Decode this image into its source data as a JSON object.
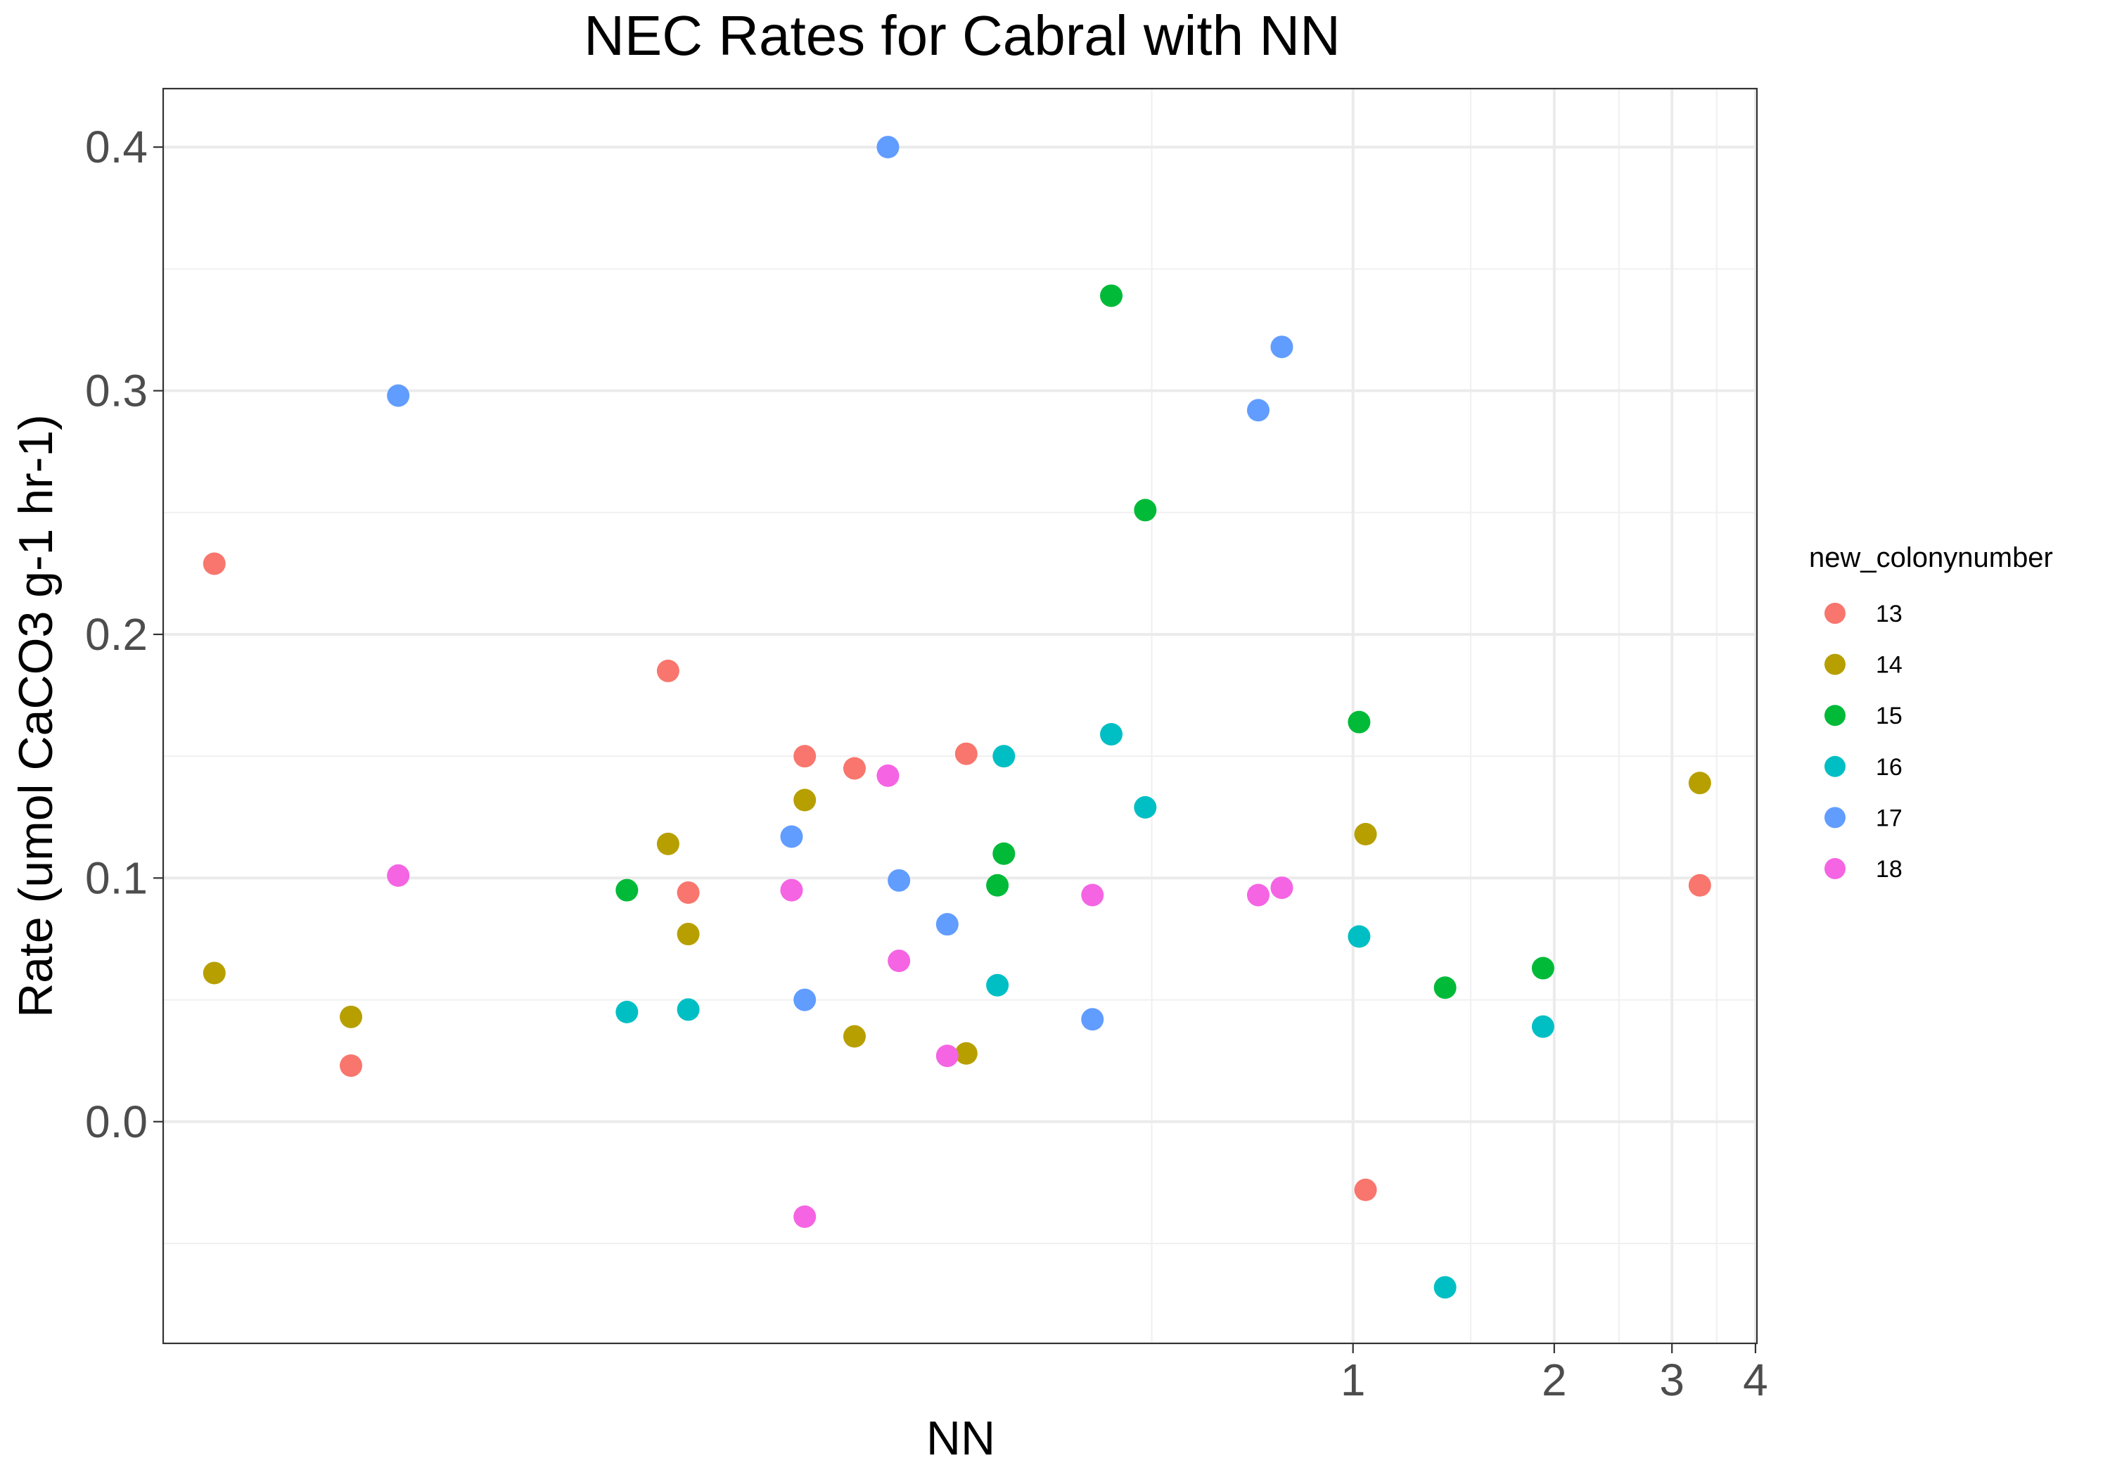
{
  "chart_data": {
    "type": "scatter",
    "title": "NEC Rates for Cabral with NN",
    "xlabel": "NN",
    "ylabel": "Rate (umol CaCO3 g-1 hr-1)",
    "x_scale": "log10",
    "xlim": [
      0.0166,
      4.02
    ],
    "ylim": [
      -0.091,
      0.424
    ],
    "x_ticks": [
      1,
      2,
      3,
      4
    ],
    "x_tick_labels": [
      "1",
      "2",
      "3",
      "4"
    ],
    "x_minor_gridlines": [
      0.5,
      1.5,
      2.5,
      3.5
    ],
    "y_ticks": [
      0.0,
      0.1,
      0.2,
      0.3,
      0.4
    ],
    "y_tick_labels": [
      "0.0",
      "0.1",
      "0.2",
      "0.3",
      "0.4"
    ],
    "y_minor_gridlines": [
      -0.05,
      0.05,
      0.15,
      0.25,
      0.35
    ],
    "grid": true,
    "legend": {
      "title": "new_colonynumber",
      "position": "right"
    },
    "series": [
      {
        "name": "13",
        "color": "#F8766D",
        "points": [
          {
            "x": 0.0198,
            "y": 0.229
          },
          {
            "x": 0.0317,
            "y": 0.023
          },
          {
            "x": 0.0945,
            "y": 0.185
          },
          {
            "x": 0.1013,
            "y": 0.094
          },
          {
            "x": 0.1513,
            "y": 0.15
          },
          {
            "x": 0.1796,
            "y": 0.145
          },
          {
            "x": 0.2639,
            "y": 0.151
          },
          {
            "x": 1.0442,
            "y": -0.028
          },
          {
            "x": 3.3024,
            "y": 0.097
          }
        ]
      },
      {
        "name": "14",
        "color": "#B79F00",
        "points": [
          {
            "x": 0.0198,
            "y": 0.061
          },
          {
            "x": 0.0317,
            "y": 0.043
          },
          {
            "x": 0.0945,
            "y": 0.114
          },
          {
            "x": 0.1013,
            "y": 0.077
          },
          {
            "x": 0.1513,
            "y": 0.132
          },
          {
            "x": 0.1796,
            "y": 0.035
          },
          {
            "x": 0.2639,
            "y": 0.028
          },
          {
            "x": 1.0442,
            "y": 0.118
          },
          {
            "x": 3.3024,
            "y": 0.139
          }
        ]
      },
      {
        "name": "15",
        "color": "#00BA38",
        "points": [
          {
            "x": 0.082,
            "y": 0.095
          },
          {
            "x": 0.2938,
            "y": 0.097
          },
          {
            "x": 0.3004,
            "y": 0.11
          },
          {
            "x": 0.4349,
            "y": 0.339
          },
          {
            "x": 0.4889,
            "y": 0.251
          },
          {
            "x": 1.0213,
            "y": 0.164
          },
          {
            "x": 1.3733,
            "y": 0.055
          },
          {
            "x": 1.9243,
            "y": 0.063
          }
        ]
      },
      {
        "name": "16",
        "color": "#00BFC4",
        "points": [
          {
            "x": 0.082,
            "y": 0.045
          },
          {
            "x": 0.1013,
            "y": 0.046
          },
          {
            "x": 0.2938,
            "y": 0.056
          },
          {
            "x": 0.3004,
            "y": 0.15
          },
          {
            "x": 0.4349,
            "y": 0.159
          },
          {
            "x": 0.4889,
            "y": 0.129
          },
          {
            "x": 1.0213,
            "y": 0.076
          },
          {
            "x": 1.3733,
            "y": -0.068
          },
          {
            "x": 1.9243,
            "y": 0.039
          }
        ]
      },
      {
        "name": "17",
        "color": "#619CFF",
        "points": [
          {
            "x": 0.0373,
            "y": 0.298
          },
          {
            "x": 0.1446,
            "y": 0.117
          },
          {
            "x": 0.1513,
            "y": 0.05
          },
          {
            "x": 0.2015,
            "y": 0.4
          },
          {
            "x": 0.2093,
            "y": 0.099
          },
          {
            "x": 0.2472,
            "y": 0.081
          },
          {
            "x": 0.4076,
            "y": 0.042
          },
          {
            "x": 0.7215,
            "y": 0.292
          },
          {
            "x": 0.7825,
            "y": 0.318
          }
        ]
      },
      {
        "name": "18",
        "color": "#F564E3",
        "points": [
          {
            "x": 0.0373,
            "y": 0.101
          },
          {
            "x": 0.1446,
            "y": 0.095
          },
          {
            "x": 0.1513,
            "y": -0.039
          },
          {
            "x": 0.2015,
            "y": 0.142
          },
          {
            "x": 0.2093,
            "y": 0.066
          },
          {
            "x": 0.2472,
            "y": 0.027
          },
          {
            "x": 0.4076,
            "y": 0.093
          },
          {
            "x": 0.7215,
            "y": 0.093
          },
          {
            "x": 0.7825,
            "y": 0.096
          }
        ]
      }
    ]
  }
}
